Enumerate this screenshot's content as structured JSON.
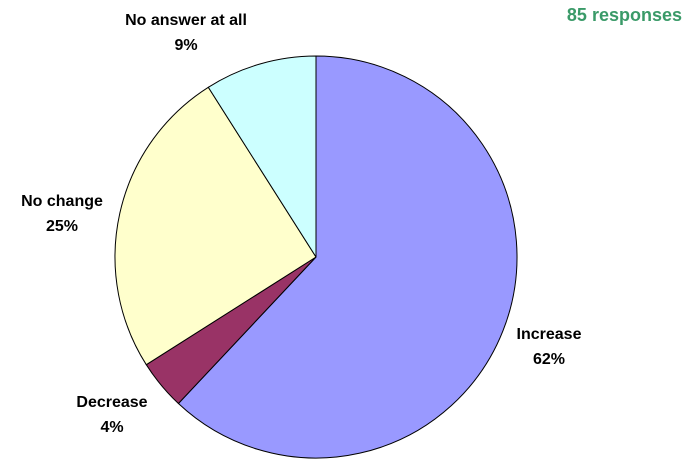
{
  "header": {
    "responses": "85 responses",
    "responses_color": "#3a9a68"
  },
  "chart_data": {
    "type": "pie",
    "title": "",
    "start_angle_deg": 0,
    "direction": "clockwise",
    "slices": [
      {
        "name": "Increase",
        "value": 62,
        "label": "62%",
        "color": "#9999ff"
      },
      {
        "name": "Decrease",
        "value": 4,
        "label": "4%",
        "color": "#993366"
      },
      {
        "name": "No change",
        "value": 25,
        "label": "25%",
        "color": "#ffffcc"
      },
      {
        "name": "No answer at all",
        "value": 9,
        "label": "9%",
        "color": "#ccffff"
      }
    ],
    "legend": "none",
    "edge_color": "#000000"
  }
}
